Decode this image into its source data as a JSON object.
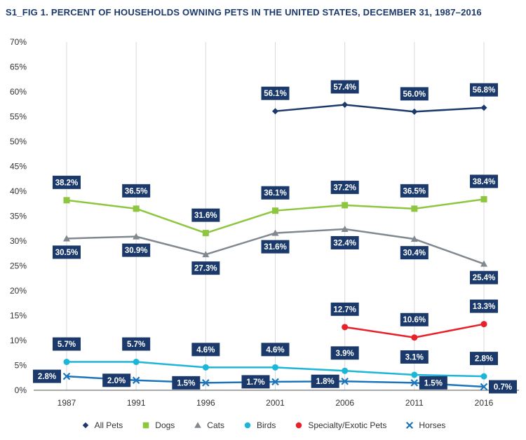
{
  "chart_data": {
    "type": "line",
    "title": "S1_FIG 1. PERCENT OF HOUSEHOLDS OWNING PETS IN THE UNITED STATES, DECEMBER 31, 1987–2016",
    "xlabel": "",
    "ylabel": "",
    "categories": [
      "1987",
      "1991",
      "1996",
      "2001",
      "2006",
      "2011",
      "2016"
    ],
    "ylim": [
      0,
      70
    ],
    "yticks": [
      0,
      5,
      10,
      15,
      20,
      25,
      30,
      35,
      40,
      45,
      50,
      55,
      60,
      65,
      70
    ],
    "ytick_labels": [
      "0%",
      "5%",
      "10%",
      "15%",
      "20%",
      "25%",
      "30%",
      "35%",
      "40%",
      "45%",
      "50%",
      "55%",
      "60%",
      "65%",
      "70%"
    ],
    "grid": "vertical",
    "legend_position": "bottom",
    "label_box_color": "#1b3a6b",
    "series": [
      {
        "name": "All Pets",
        "color": "#1b3a6b",
        "marker": "diamond",
        "values": [
          null,
          null,
          null,
          56.1,
          57.4,
          56.0,
          56.8
        ],
        "labels": [
          null,
          null,
          null,
          "56.1%",
          "57.4%",
          "56.0%",
          "56.8%"
        ],
        "label_side": [
          "above",
          "above",
          "above",
          "above",
          "above",
          "above",
          "above"
        ]
      },
      {
        "name": "Dogs",
        "color": "#8dc63f",
        "marker": "square",
        "values": [
          38.2,
          36.5,
          31.6,
          36.1,
          37.2,
          36.5,
          38.4
        ],
        "labels": [
          "38.2%",
          "36.5%",
          "31.6%",
          "36.1%",
          "37.2%",
          "36.5%",
          "38.4%"
        ],
        "label_side": [
          "above",
          "above",
          "above",
          "above",
          "above",
          "above",
          "above"
        ]
      },
      {
        "name": "Cats",
        "color": "#808890",
        "marker": "triangle",
        "values": [
          30.5,
          30.9,
          27.3,
          31.6,
          32.4,
          30.4,
          25.4
        ],
        "labels": [
          "30.5%",
          "30.9%",
          "27.3%",
          "31.6%",
          "32.4%",
          "30.4%",
          "25.4%"
        ],
        "label_side": [
          "below",
          "below",
          "below",
          "below",
          "below",
          "below",
          "below"
        ]
      },
      {
        "name": "Birds",
        "color": "#1cb6d8",
        "marker": "circle",
        "values": [
          5.7,
          5.7,
          4.6,
          4.6,
          3.9,
          3.1,
          2.8
        ],
        "labels": [
          "5.7%",
          "5.7%",
          "4.6%",
          "4.6%",
          "3.9%",
          "3.1%",
          "2.8%"
        ],
        "label_side": [
          "above",
          "above",
          "above",
          "above",
          "above",
          "above",
          "above"
        ]
      },
      {
        "name": "Specialty/Exotic Pets",
        "color": "#e8202a",
        "marker": "circle",
        "values": [
          null,
          null,
          null,
          null,
          12.7,
          10.6,
          13.3
        ],
        "labels": [
          null,
          null,
          null,
          null,
          "12.7%",
          "10.6%",
          "13.3%"
        ],
        "label_side": [
          "above",
          "above",
          "above",
          "above",
          "above",
          "above",
          "above"
        ]
      },
      {
        "name": "Horses",
        "color": "#1c75bc",
        "marker": "x",
        "values": [
          2.8,
          2.0,
          1.5,
          1.7,
          1.8,
          1.5,
          0.7
        ],
        "labels": [
          "2.8%",
          "2.0%",
          "1.5%",
          "1.7%",
          "1.8%",
          "1.5%",
          "0.7%"
        ],
        "label_side": [
          "left",
          "left",
          "left",
          "left",
          "left",
          "right",
          "right"
        ]
      }
    ]
  }
}
